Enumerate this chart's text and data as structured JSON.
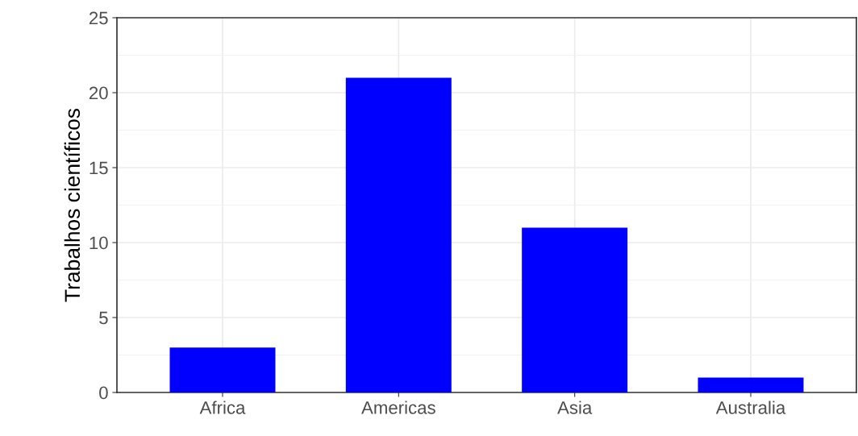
{
  "chart_data": {
    "type": "bar",
    "ylabel": "Trabalhos científicos",
    "categories": [
      "Africa",
      "Americas",
      "Asia",
      "Australia"
    ],
    "values": [
      3,
      21,
      11,
      1
    ],
    "color": "#0000ff",
    "ylim": [
      0,
      25
    ],
    "yticks": [
      0,
      5,
      10,
      15,
      20,
      25
    ],
    "grid": true
  }
}
